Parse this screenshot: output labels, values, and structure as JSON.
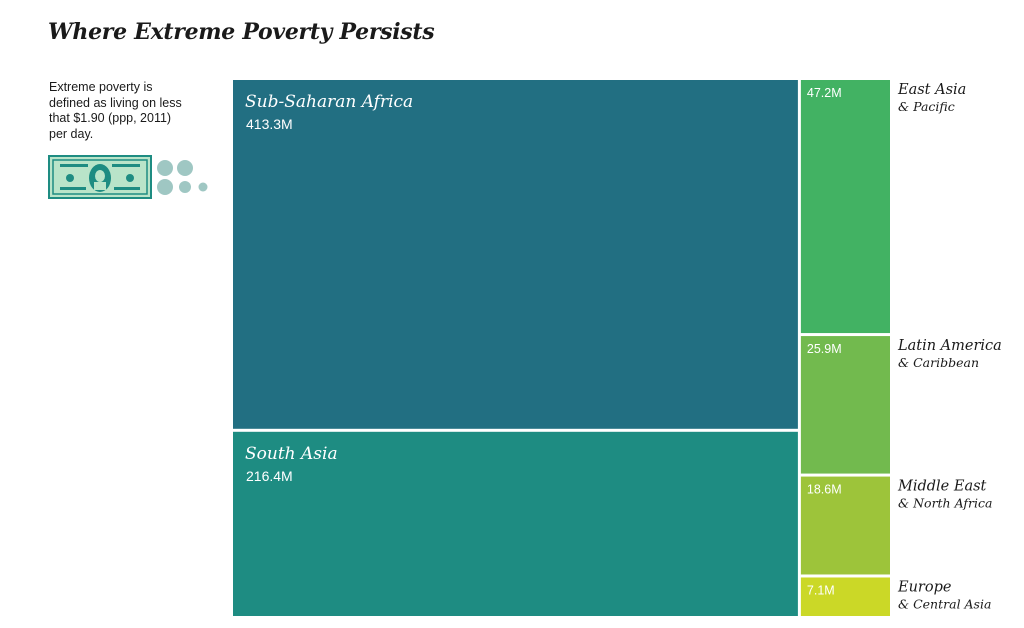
{
  "title": "Where Extreme Poverty Persists",
  "note": "Extreme poverty is defined as living on less that $1.90 (ppp, 2011) per day.",
  "icons": {
    "money": "dollar-bill-icon",
    "coins": "coins-icon"
  },
  "chart_data": {
    "type": "treemap",
    "unit": "M",
    "items": [
      {
        "label": "Sub-Saharan Africa",
        "value": 413.3,
        "value_label": "413.3M",
        "color": "#226f82"
      },
      {
        "label": "South Asia",
        "value": 216.4,
        "value_label": "216.4M",
        "color": "#1e8c82"
      },
      {
        "label": "East Asia",
        "sublabel": "& Pacific",
        "value": 47.2,
        "value_label": "47.2M",
        "color": "#42b263"
      },
      {
        "label": "Latin America",
        "sublabel": "& Caribbean",
        "value": 25.9,
        "value_label": "25.9M",
        "color": "#72ba4e"
      },
      {
        "label": "Middle East",
        "sublabel": "& North Africa",
        "value": 18.6,
        "value_label": "18.6M",
        "color": "#9dc43a"
      },
      {
        "label": "Europe",
        "sublabel": "& Central Asia",
        "value": 7.1,
        "value_label": "7.1M",
        "color": "#cbd827"
      }
    ]
  }
}
